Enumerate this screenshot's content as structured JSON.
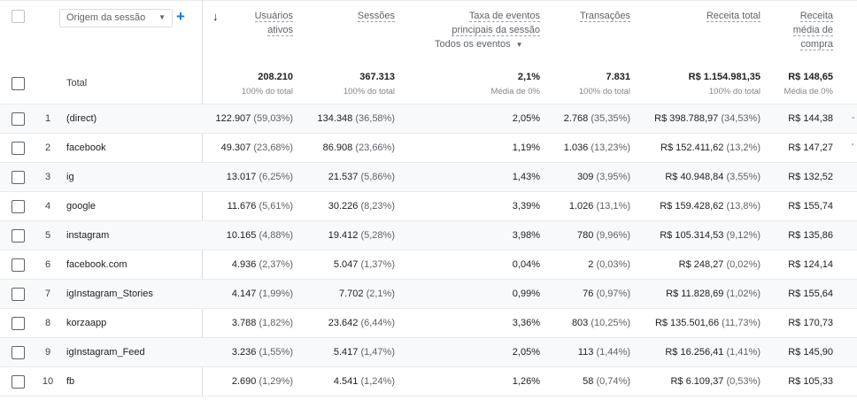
{
  "header": {
    "dimension_label": "Origem da sessão",
    "add_label": "+",
    "sort_icon": "arrow-down-icon",
    "columns": {
      "users": [
        "Usuários",
        "ativos"
      ],
      "sessions": [
        "Sessões"
      ],
      "event_rate": [
        "Taxa de eventos",
        "principais da sessão"
      ],
      "transactions": [
        "Transações"
      ],
      "revenue": [
        "Receita total"
      ],
      "avg": [
        "Receita",
        "média de",
        "compra"
      ]
    },
    "event_rate_filter": "Todos os eventos"
  },
  "totals": {
    "label": "Total",
    "users": "208.210",
    "users_sub": "100% do total",
    "sessions": "367.313",
    "sessions_sub": "100% do total",
    "event_rate": "2,1%",
    "event_rate_sub": "Média de 0%",
    "transactions": "7.831",
    "transactions_sub": "100% do total",
    "revenue": "R$ 1.154.981,35",
    "revenue_sub": "100% do total",
    "avg": "R$ 148,65",
    "avg_sub": "Média de 0%"
  },
  "rows": [
    {
      "idx": "1",
      "name": "(direct)",
      "users": "122.907",
      "users_pct": "(59,03%)",
      "sessions": "134.348",
      "sessions_pct": "(36,58%)",
      "rate": "2,05%",
      "trans": "2.768",
      "trans_pct": "(35,35%)",
      "rev": "R$ 398.788,97",
      "rev_pct": "(34,53%)",
      "avg": "R$ 144,38",
      "edge": "-"
    },
    {
      "idx": "2",
      "name": "facebook",
      "users": "49.307",
      "users_pct": "(23,68%)",
      "sessions": "86.908",
      "sessions_pct": "(23,66%)",
      "rate": "1,19%",
      "trans": "1.036",
      "trans_pct": "(13,23%)",
      "rev": "R$ 152.411,62",
      "rev_pct": "(13,2%)",
      "avg": "R$ 147,27",
      "edge": "'"
    },
    {
      "idx": "3",
      "name": "ig",
      "users": "13.017",
      "users_pct": "(6,25%)",
      "sessions": "21.537",
      "sessions_pct": "(5,86%)",
      "rate": "1,43%",
      "trans": "309",
      "trans_pct": "(3,95%)",
      "rev": "R$ 40.948,84",
      "rev_pct": "(3,55%)",
      "avg": "R$ 132,52",
      "edge": ""
    },
    {
      "idx": "4",
      "name": "google",
      "users": "11.676",
      "users_pct": "(5,61%)",
      "sessions": "30.226",
      "sessions_pct": "(8,23%)",
      "rate": "3,39%",
      "trans": "1.026",
      "trans_pct": "(13,1%)",
      "rev": "R$ 159.428,62",
      "rev_pct": "(13,8%)",
      "avg": "R$ 155,74",
      "edge": ""
    },
    {
      "idx": "5",
      "name": "instagram",
      "users": "10.165",
      "users_pct": "(4,88%)",
      "sessions": "19.412",
      "sessions_pct": "(5,28%)",
      "rate": "3,98%",
      "trans": "780",
      "trans_pct": "(9,96%)",
      "rev": "R$ 105.314,53",
      "rev_pct": "(9,12%)",
      "avg": "R$ 135,86",
      "edge": ""
    },
    {
      "idx": "6",
      "name": "facebook.com",
      "users": "4.936",
      "users_pct": "(2,37%)",
      "sessions": "5.047",
      "sessions_pct": "(1,37%)",
      "rate": "0,04%",
      "trans": "2",
      "trans_pct": "(0,03%)",
      "rev": "R$ 248,27",
      "rev_pct": "(0,02%)",
      "avg": "R$ 124,14",
      "edge": ""
    },
    {
      "idx": "7",
      "name": "igInstagram_Stories",
      "users": "4.147",
      "users_pct": "(1,99%)",
      "sessions": "7.702",
      "sessions_pct": "(2,1%)",
      "rate": "0,99%",
      "trans": "76",
      "trans_pct": "(0,97%)",
      "rev": "R$ 11.828,69",
      "rev_pct": "(1,02%)",
      "avg": "R$ 155,64",
      "edge": ""
    },
    {
      "idx": "8",
      "name": "korzaapp",
      "users": "3.788",
      "users_pct": "(1,82%)",
      "sessions": "23.642",
      "sessions_pct": "(6,44%)",
      "rate": "3,36%",
      "trans": "803",
      "trans_pct": "(10,25%)",
      "rev": "R$ 135.501,66",
      "rev_pct": "(11,73%)",
      "avg": "R$ 170,73",
      "edge": ""
    },
    {
      "idx": "9",
      "name": "igInstagram_Feed",
      "users": "3.236",
      "users_pct": "(1,55%)",
      "sessions": "5.417",
      "sessions_pct": "(1,47%)",
      "rate": "2,05%",
      "trans": "113",
      "trans_pct": "(1,44%)",
      "rev": "R$ 16.256,41",
      "rev_pct": "(1,41%)",
      "avg": "R$ 145,90",
      "edge": ""
    },
    {
      "idx": "10",
      "name": "fb",
      "users": "2.690",
      "users_pct": "(1,29%)",
      "sessions": "4.541",
      "sessions_pct": "(1,24%)",
      "rate": "1,26%",
      "trans": "58",
      "trans_pct": "(0,74%)",
      "rev": "R$ 6.109,37",
      "rev_pct": "(0,53%)",
      "avg": "R$ 105,33",
      "edge": ""
    }
  ]
}
